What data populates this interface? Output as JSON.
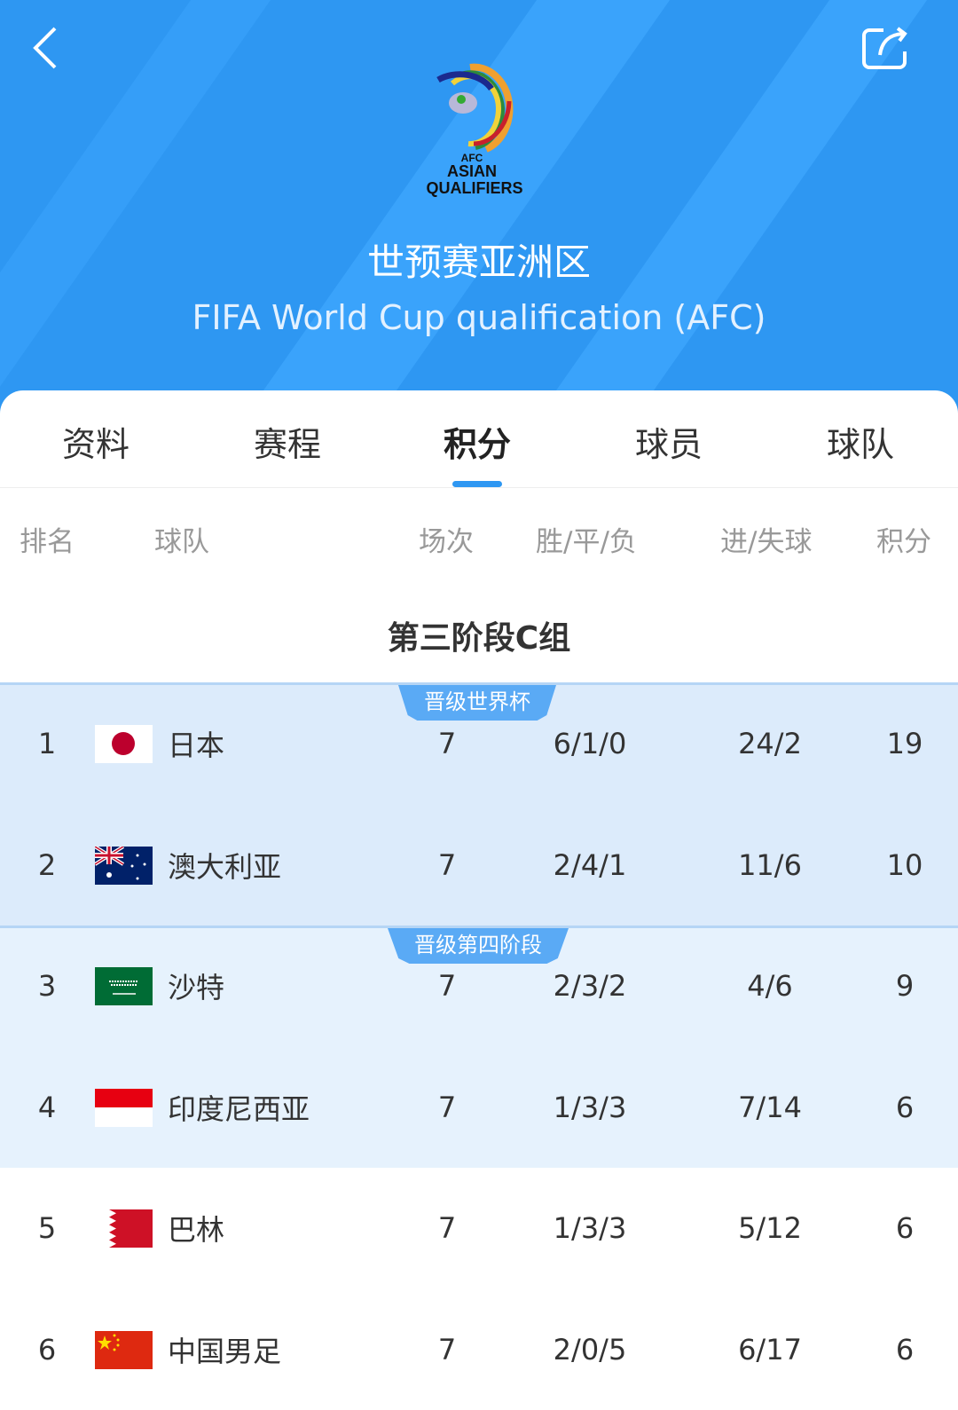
{
  "header": {
    "title": "世预赛亚洲区",
    "subtitle": "FIFA World Cup qualification (AFC)",
    "logo_text": "AFC ASIAN QUALIFIERS",
    "back_icon": "chevron-left-icon",
    "share_icon": "share-icon",
    "color": "#2e97f2"
  },
  "tabs": [
    {
      "label": "资料"
    },
    {
      "label": "赛程"
    },
    {
      "label": "积分",
      "active": true
    },
    {
      "label": "球员"
    },
    {
      "label": "球队"
    }
  ],
  "columns": {
    "rank": "排名",
    "team": "球队",
    "played": "场次",
    "wdl": "胜/平/负",
    "goals": "进/失球",
    "points": "积分"
  },
  "group_title": "第三阶段C组",
  "zones": [
    {
      "label": "晋级世界杯",
      "color": "#dcebfb"
    },
    {
      "label": "晋级第四阶段",
      "color": "#e6f2fd"
    }
  ],
  "rows": [
    {
      "rank": "1",
      "flag": "japan",
      "team": "日本",
      "played": "7",
      "wdl": "6/1/0",
      "goals": "24/2",
      "points": "19"
    },
    {
      "rank": "2",
      "flag": "australia",
      "team": "澳大利亚",
      "played": "7",
      "wdl": "2/4/1",
      "goals": "11/6",
      "points": "10"
    },
    {
      "rank": "3",
      "flag": "saudi-arabia",
      "team": "沙特",
      "played": "7",
      "wdl": "2/3/2",
      "goals": "4/6",
      "points": "9"
    },
    {
      "rank": "4",
      "flag": "indonesia",
      "team": "印度尼西亚",
      "played": "7",
      "wdl": "1/3/3",
      "goals": "7/14",
      "points": "6"
    },
    {
      "rank": "5",
      "flag": "bahrain",
      "team": "巴林",
      "played": "7",
      "wdl": "1/3/3",
      "goals": "5/12",
      "points": "6"
    },
    {
      "rank": "6",
      "flag": "china",
      "team": "中国男足",
      "played": "7",
      "wdl": "2/0/5",
      "goals": "6/17",
      "points": "6"
    }
  ]
}
